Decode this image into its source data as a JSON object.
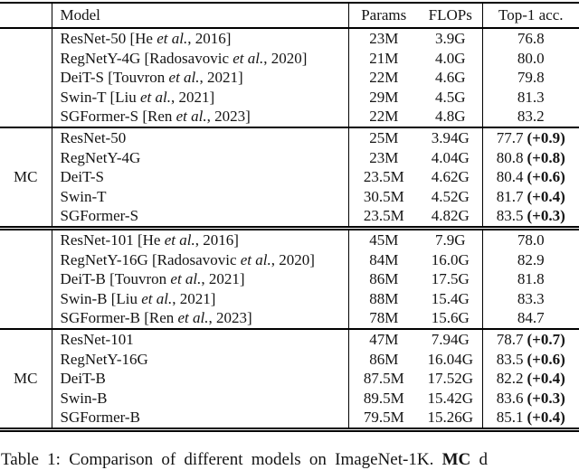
{
  "table": {
    "columns": {
      "model": "Model",
      "params": "Params",
      "flops": "FLOPs",
      "top1": "Top-1 acc."
    },
    "sections": [
      {
        "group": "",
        "rows": [
          {
            "model": "ResNet-50",
            "cite_pre": "[He ",
            "etal": "et al.",
            "cite_post": ", 2016]",
            "params": "23M",
            "flops": "3.9G",
            "top1": "76.8",
            "delta": ""
          },
          {
            "model": "RegNetY-4G",
            "cite_pre": "[Radosavovic ",
            "etal": "et al.",
            "cite_post": ", 2020]",
            "params": "21M",
            "flops": "4.0G",
            "top1": "80.0",
            "delta": ""
          },
          {
            "model": "DeiT-S",
            "cite_pre": "[Touvron ",
            "etal": "et al.",
            "cite_post": ", 2021]",
            "params": "22M",
            "flops": "4.6G",
            "top1": "79.8",
            "delta": ""
          },
          {
            "model": "Swin-T",
            "cite_pre": "[Liu ",
            "etal": "et al.",
            "cite_post": ", 2021]",
            "params": "29M",
            "flops": "4.5G",
            "top1": "81.3",
            "delta": ""
          },
          {
            "model": "SGFormer-S",
            "cite_pre": "[Ren ",
            "etal": "et al.",
            "cite_post": ", 2023]",
            "params": "22M",
            "flops": "4.8G",
            "top1": "83.2",
            "delta": ""
          }
        ]
      },
      {
        "group": "MC",
        "rows": [
          {
            "model": "ResNet-50",
            "cite_pre": "",
            "etal": "",
            "cite_post": "",
            "params": "25M",
            "flops": "3.94G",
            "top1": "77.7",
            "delta": "(+0.9)"
          },
          {
            "model": "RegNetY-4G",
            "cite_pre": "",
            "etal": "",
            "cite_post": "",
            "params": "23M",
            "flops": "4.04G",
            "top1": "80.8",
            "delta": "(+0.8)"
          },
          {
            "model": "DeiT-S",
            "cite_pre": "",
            "etal": "",
            "cite_post": "",
            "params": "23.5M",
            "flops": "4.62G",
            "top1": "80.4",
            "delta": "(+0.6)"
          },
          {
            "model": "Swin-T",
            "cite_pre": "",
            "etal": "",
            "cite_post": "",
            "params": "30.5M",
            "flops": "4.52G",
            "top1": "81.7",
            "delta": "(+0.4)"
          },
          {
            "model": "SGFormer-S",
            "cite_pre": "",
            "etal": "",
            "cite_post": "",
            "params": "23.5M",
            "flops": "4.82G",
            "top1": "83.5",
            "delta": "(+0.3)"
          }
        ]
      },
      {
        "group": "",
        "rows": [
          {
            "model": "ResNet-101",
            "cite_pre": "[He ",
            "etal": "et al.",
            "cite_post": ", 2016]",
            "params": "45M",
            "flops": "7.9G",
            "top1": "78.0",
            "delta": ""
          },
          {
            "model": "RegNetY-16G",
            "cite_pre": "[Radosavovic ",
            "etal": "et al.",
            "cite_post": ", 2020]",
            "params": "84M",
            "flops": "16.0G",
            "top1": "82.9",
            "delta": ""
          },
          {
            "model": "DeiT-B",
            "cite_pre": "[Touvron ",
            "etal": "et al.",
            "cite_post": ", 2021]",
            "params": "86M",
            "flops": "17.5G",
            "top1": "81.8",
            "delta": ""
          },
          {
            "model": "Swin-B",
            "cite_pre": "[Liu ",
            "etal": "et al.",
            "cite_post": ", 2021]",
            "params": "88M",
            "flops": "15.4G",
            "top1": "83.3",
            "delta": ""
          },
          {
            "model": "SGFormer-B",
            "cite_pre": "[Ren ",
            "etal": "et al.",
            "cite_post": ", 2023]",
            "params": "78M",
            "flops": "15.6G",
            "top1": "84.7",
            "delta": ""
          }
        ]
      },
      {
        "group": "MC",
        "rows": [
          {
            "model": "ResNet-101",
            "cite_pre": "",
            "etal": "",
            "cite_post": "",
            "params": "47M",
            "flops": "7.94G",
            "top1": "78.7",
            "delta": "(+0.7)"
          },
          {
            "model": "RegNetY-16G",
            "cite_pre": "",
            "etal": "",
            "cite_post": "",
            "params": "86M",
            "flops": "16.04G",
            "top1": "83.5",
            "delta": "(+0.6)"
          },
          {
            "model": "DeiT-B",
            "cite_pre": "",
            "etal": "",
            "cite_post": "",
            "params": "87.5M",
            "flops": "17.52G",
            "top1": "82.2",
            "delta": "(+0.4)"
          },
          {
            "model": "Swin-B",
            "cite_pre": "",
            "etal": "",
            "cite_post": "",
            "params": "89.5M",
            "flops": "15.42G",
            "top1": "83.6",
            "delta": "(+0.3)"
          },
          {
            "model": "SGFormer-B",
            "cite_pre": "",
            "etal": "",
            "cite_post": "",
            "params": "79.5M",
            "flops": "15.26G",
            "top1": "85.1",
            "delta": "(+0.4)"
          }
        ]
      }
    ]
  },
  "caption": {
    "prefix": "Table 1: Comparison of different models on ImageNet-1K. ",
    "mc": "MC",
    "suffix": " d"
  }
}
